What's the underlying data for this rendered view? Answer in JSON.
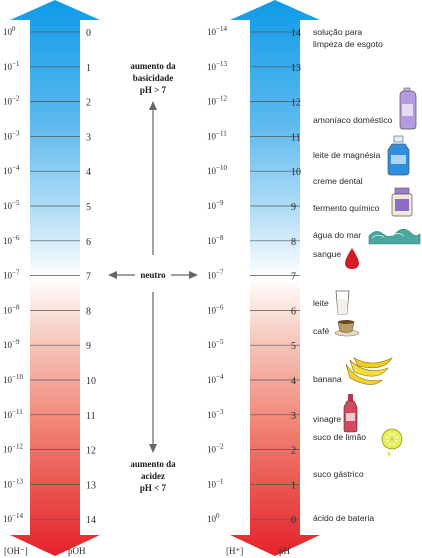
{
  "left_scale": {
    "conc_base": "10",
    "conc_exponents": [
      "0",
      "−1",
      "−2",
      "−3",
      "−4",
      "−5",
      "−6",
      "−7",
      "−8",
      "−9",
      "−10",
      "−11",
      "−12",
      "−13",
      "−14"
    ],
    "values": [
      "0",
      "1",
      "2",
      "3",
      "4",
      "5",
      "6",
      "7",
      "8",
      "9",
      "10",
      "11",
      "12",
      "13",
      "14"
    ],
    "conc_label": "[OH⁻]",
    "value_label": "pOH"
  },
  "right_scale": {
    "conc_base": "10",
    "conc_exponents": [
      "−14",
      "−13",
      "−12",
      "−11",
      "−10",
      "−9",
      "−8",
      "−7",
      "−6",
      "−5",
      "−4",
      "−3",
      "−2",
      "−1",
      "0"
    ],
    "values": [
      "14",
      "13",
      "12",
      "11",
      "10",
      "9",
      "8",
      "7",
      "6",
      "5",
      "4",
      "3",
      "2",
      "1",
      "0"
    ],
    "conc_label": "[H⁺]",
    "value_label": "pH"
  },
  "middle": {
    "basic_title_line1": "aumento da",
    "basic_title_line2": "basicidade",
    "basic_title_line3": "pH > 7",
    "neutral": "neutro",
    "acid_title_line1": "aumento da",
    "acid_title_line2": "acidez",
    "acid_title_line3": "pH < 7"
  },
  "substances": [
    {
      "label_line1": "solução para",
      "label_line2": "limpeza de esgoto",
      "icon": "none"
    },
    {
      "label_line1": "amoníaco doméstico",
      "icon": "cleaner-bottle-icon"
    },
    {
      "label_line1": "leite de magnésia",
      "icon": "blue-bottle-icon"
    },
    {
      "label_line1": "creme dental",
      "icon": "none"
    },
    {
      "label_line1": "fermento químico",
      "icon": "baking-powder-jar-icon"
    },
    {
      "label_line1": "água do mar",
      "icon": "wave-icon"
    },
    {
      "label_line1": "sangue",
      "icon": "blood-drop-icon"
    },
    {
      "label_line1": "leite",
      "icon": "milk-glass-icon"
    },
    {
      "label_line1": "café",
      "icon": "coffee-cup-icon"
    },
    {
      "label_line1": "banana",
      "icon": "banana-icon"
    },
    {
      "label_line1": "vinagre",
      "icon": "vinegar-bottle-icon"
    },
    {
      "label_line1": "suco de limão",
      "icon": "lemon-icon"
    },
    {
      "label_line1": "suco gástrico",
      "icon": "none"
    },
    {
      "label_line1": "ácido de bateria",
      "icon": "none"
    }
  ],
  "colors": {
    "basic_top": "#1a9fe6",
    "neutral": "#ffffff",
    "acid_bottom": "#e8242b"
  }
}
